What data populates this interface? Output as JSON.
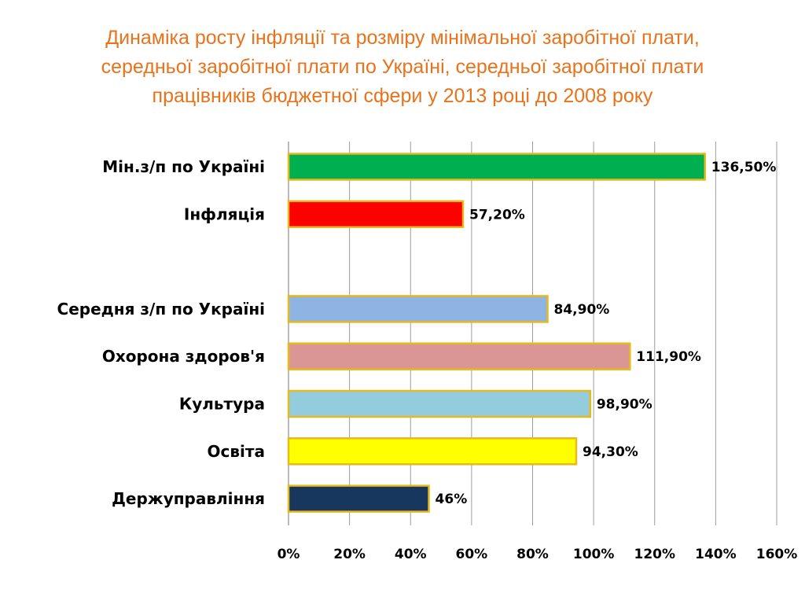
{
  "slide": {
    "title_lines": [
      "Динаміка росту інфляції та розміру мінімальної заробітної плати,",
      "середньої заробітної плати по Україні, середньої заробітної плати",
      "працівників бюджетної сфери у 2013 році до  2008 року"
    ],
    "title_color": "#e8731d"
  },
  "chart_data": {
    "type": "bar",
    "orientation": "horizontal",
    "categories": [
      "Мін.з/п по Україні",
      "Інфляція",
      "",
      "Середня з/п по Україні",
      "Охорона здоров'я",
      "Культура",
      "Освіта",
      "Держуправління"
    ],
    "values": [
      136.5,
      57.2,
      null,
      84.9,
      111.9,
      98.9,
      94.3,
      46
    ],
    "value_labels": [
      "136,50%",
      "57,20%",
      "",
      "84,90%",
      "111,90%",
      "98,90%",
      "94,30%",
      "46%"
    ],
    "bar_colors": [
      "#00b050",
      "#ff0000",
      "",
      "#8eb4e3",
      "#d99694",
      "#93cddd",
      "#ffff00",
      "#17375e"
    ],
    "bar_border_color": "#e6b91e",
    "xlim": [
      0,
      160
    ],
    "xticks": [
      0,
      20,
      40,
      60,
      80,
      100,
      120,
      140,
      160
    ],
    "xtick_labels": [
      "0%",
      "20%",
      "40%",
      "60%",
      "80%",
      "100%",
      "120%",
      "140%",
      "160%"
    ],
    "grid": "vertical",
    "legend": "none"
  }
}
